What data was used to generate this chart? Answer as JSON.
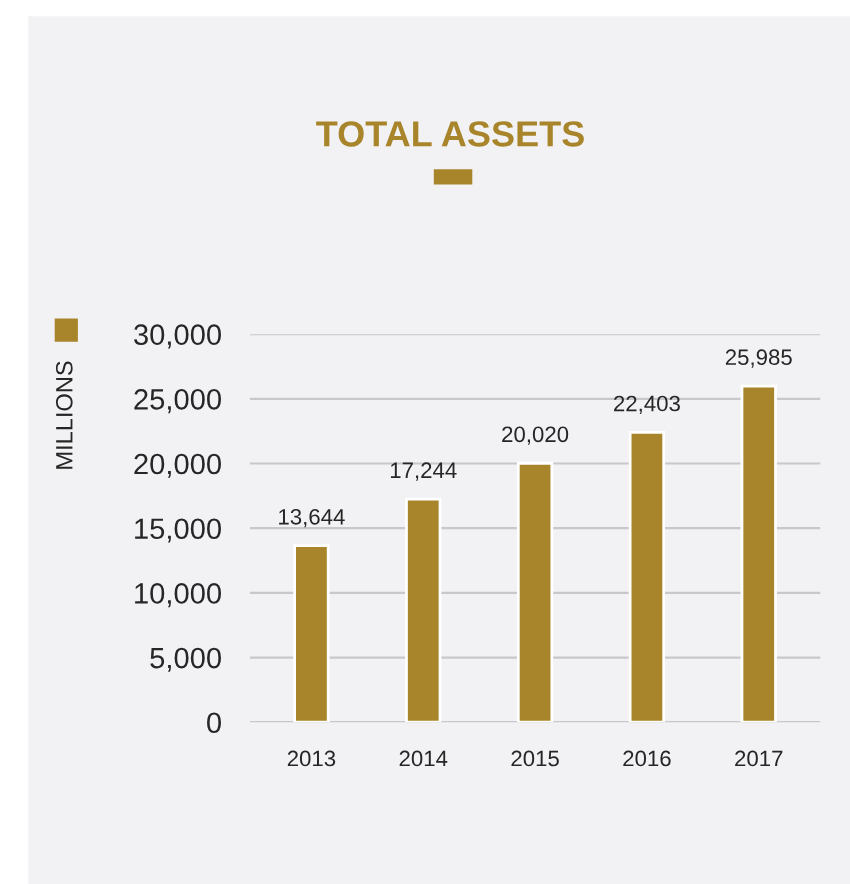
{
  "chart_data": {
    "type": "bar",
    "title": "TOTAL ASSETS",
    "ylabel": "MILLIONS",
    "categories": [
      "2013",
      "2014",
      "2015",
      "2016",
      "2017"
    ],
    "values": [
      13644,
      17244,
      20020,
      22403,
      25985
    ],
    "value_labels": [
      "13,644",
      "17,244",
      "20,020",
      "22,403",
      "25,985"
    ],
    "color": "#a8852a",
    "ylim": [
      0,
      30000
    ],
    "yticks": [
      {
        "value": 0,
        "label": "0"
      },
      {
        "value": 5000,
        "label": "5,000"
      },
      {
        "value": 10000,
        "label": "10,000"
      },
      {
        "value": 15000,
        "label": "15,000"
      },
      {
        "value": 20000,
        "label": "20,000"
      },
      {
        "value": 25000,
        "label": "25,000"
      },
      {
        "value": 30000,
        "label": "30,000"
      }
    ],
    "grid": "y"
  }
}
